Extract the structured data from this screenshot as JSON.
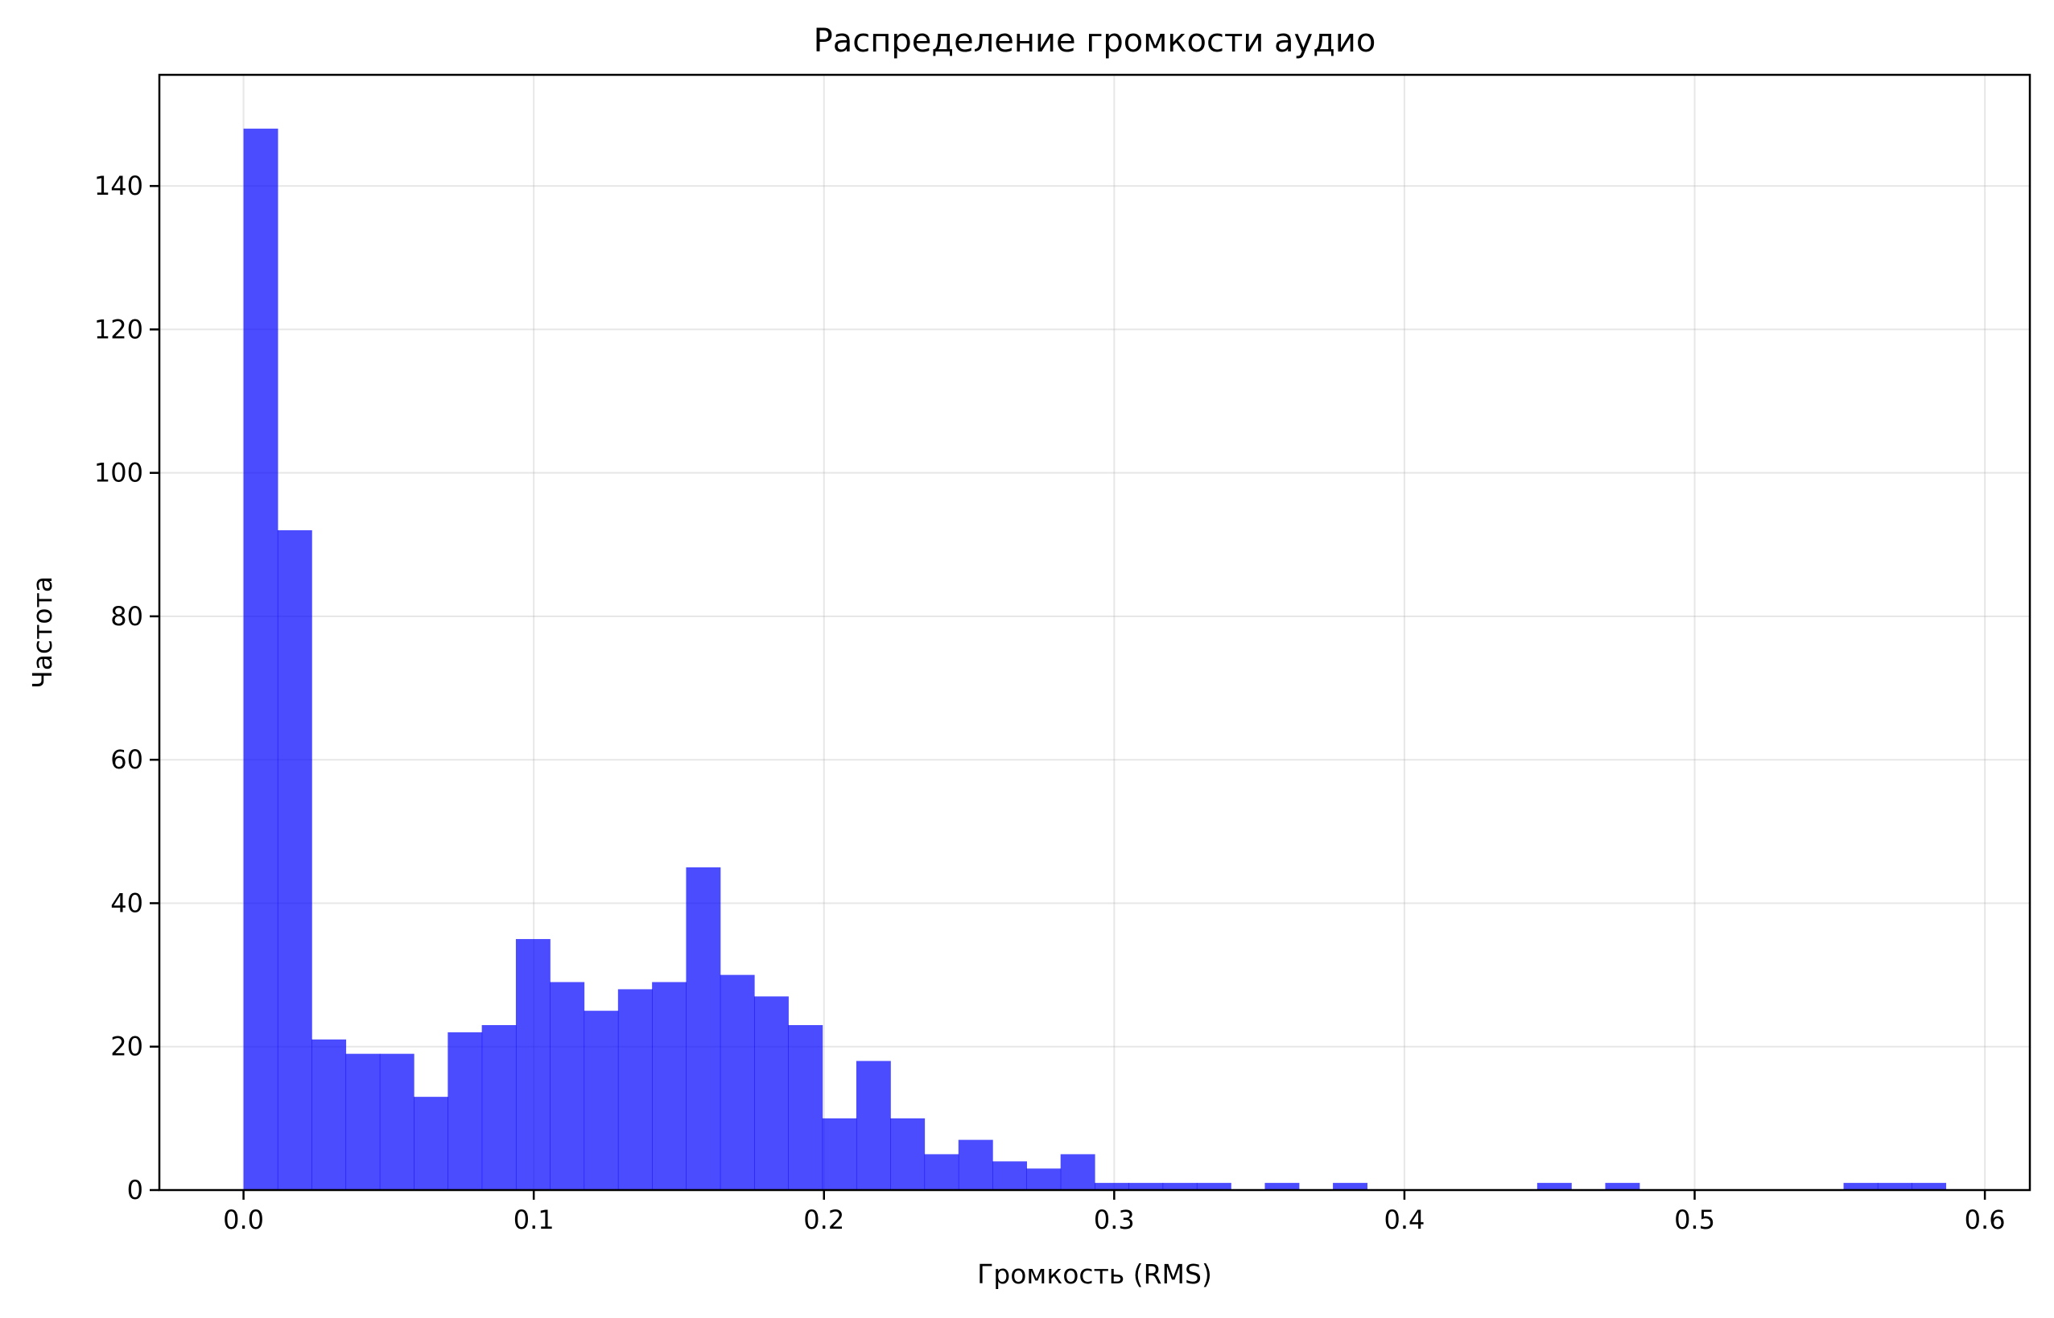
{
  "chart_data": {
    "type": "bar",
    "subtype": "histogram",
    "title": "Распределение громкости аудио",
    "xlabel": "Громкость (RMS)",
    "ylabel": "Частота",
    "xlim": [
      -0.029,
      0.6155
    ],
    "ylim": [
      0,
      155.5
    ],
    "xticks": [
      0.0,
      0.1,
      0.2,
      0.3,
      0.4,
      0.5,
      0.6
    ],
    "xtick_labels": [
      "0.0",
      "0.1",
      "0.2",
      "0.3",
      "0.4",
      "0.5",
      "0.6"
    ],
    "yticks": [
      0,
      20,
      40,
      60,
      80,
      100,
      120,
      140
    ],
    "ytick_labels": [
      "0",
      "20",
      "40",
      "60",
      "80",
      "100",
      "120",
      "140"
    ],
    "grid": true,
    "bar_color": "#0000ff",
    "bar_opacity": 0.7,
    "bin_start": 0.0,
    "bin_width": 0.01173,
    "counts": [
      148,
      92,
      21,
      19,
      19,
      13,
      22,
      23,
      35,
      29,
      25,
      28,
      29,
      45,
      30,
      27,
      23,
      10,
      18,
      10,
      5,
      7,
      4,
      3,
      5,
      1,
      1,
      1,
      1,
      0,
      1,
      0,
      1,
      0,
      0,
      0,
      0,
      0,
      1,
      0,
      1,
      0,
      0,
      0,
      0,
      0,
      0,
      1,
      1,
      1
    ]
  }
}
